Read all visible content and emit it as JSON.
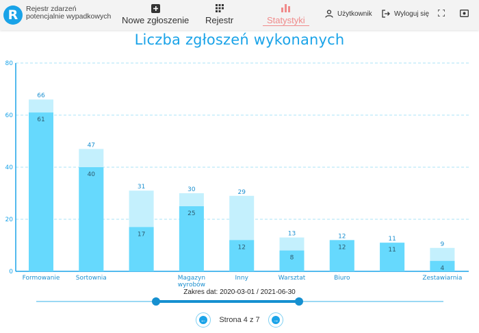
{
  "app": {
    "logo_letter": "R",
    "title_line1": "Rejestr zdarzeń",
    "title_line2": "potencjalnie wypadkowych"
  },
  "nav": [
    {
      "label": "Nowe zgłoszenie",
      "icon": "add-box-icon"
    },
    {
      "label": "Rejestr",
      "icon": "grid-icon"
    },
    {
      "label": "Statystyki",
      "icon": "bar-chart-icon",
      "active": true
    }
  ],
  "top_actions": {
    "user_label": "Użytkownik",
    "logout_label": "Wyloguj się"
  },
  "colors": {
    "accent": "#1aa3e8",
    "bar_light": "#c4f0fd",
    "bar_dark": "#66d9fd",
    "active_nav": "#f08a8a"
  },
  "chart_data": {
    "type": "bar",
    "title": "Liczba zgłoszeń wykonanych",
    "categories": [
      "Formowanie",
      "Sortownia",
      "",
      "Magazyn wyrobów",
      "Inny",
      "Warsztat",
      "Biuro",
      "",
      "Zestawiarnia"
    ],
    "series": [
      {
        "values": [
          66,
          47,
          31,
          30,
          29,
          13,
          12,
          11,
          9
        ]
      },
      {
        "values": [
          61,
          40,
          17,
          25,
          12,
          8,
          12,
          11,
          4
        ]
      }
    ],
    "ylim": [
      0,
      80
    ],
    "yticks": [
      "0",
      "20",
      "40",
      "60",
      "80"
    ],
    "grid": true
  },
  "date_range_label": "Zakres dat: 2020-03-01 / 2021-06-30",
  "pager": {
    "text": "Strona 4 z 7"
  }
}
